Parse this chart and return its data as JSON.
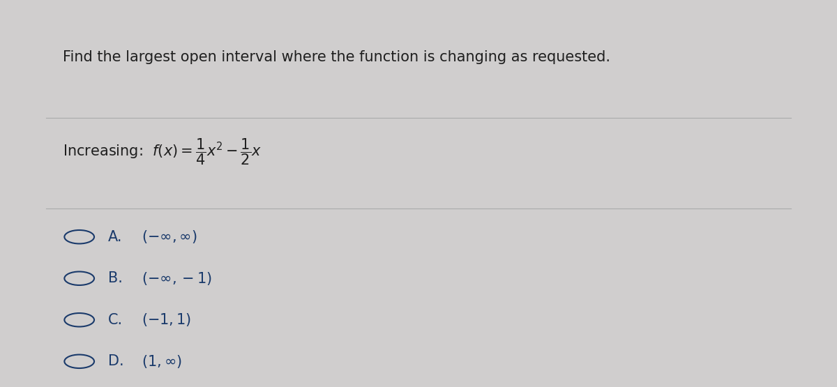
{
  "background_color": "#d0cece",
  "title_text": "Find the largest open interval where the function is changing as requested.",
  "title_fontsize": 15,
  "title_color": "#1f1f1f",
  "increasing_latex": "Increasing:  $f(x) = \\dfrac{1}{4}x^2 - \\dfrac{1}{2}x$",
  "options": [
    {
      "label": "A.",
      "text": "$(-\\infty, \\infty)$"
    },
    {
      "label": "B.",
      "text": "$(-\\infty, -1)$"
    },
    {
      "label": "C.",
      "text": "$(-1, 1)$"
    },
    {
      "label": "D.",
      "text": "$(1, \\infty)$"
    }
  ],
  "option_fontsize": 15,
  "option_color": "#1a3a6b",
  "divider_color": "#aaaaaa",
  "text_color": "#1f1f1f"
}
